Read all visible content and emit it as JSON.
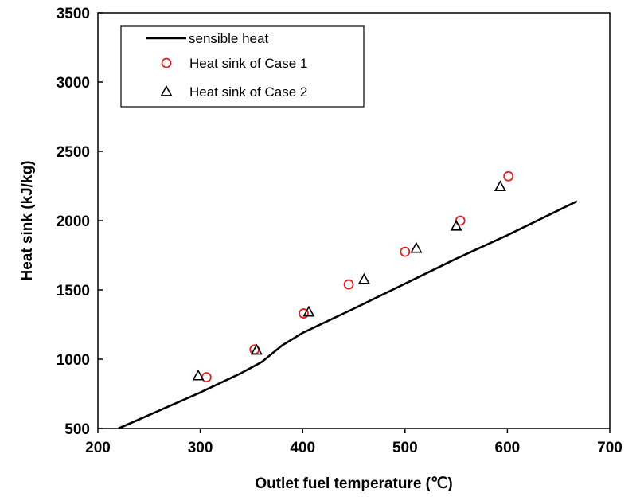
{
  "chart_data": {
    "type": "line",
    "xlabel": "Outlet fuel temperature (℃)",
    "ylabel": "Heat sink (kJ/kg)",
    "xlim": [
      200,
      700
    ],
    "ylim": [
      500,
      3500
    ],
    "xticks": [
      200,
      300,
      400,
      500,
      600,
      700
    ],
    "yticks": [
      500,
      1000,
      1500,
      2000,
      2500,
      3000,
      3500
    ],
    "grid": false,
    "legend_position": "top-left",
    "series": [
      {
        "name": "sensible heat",
        "kind": "line",
        "color": "#000000",
        "x": [
          220,
          260,
          300,
          340,
          360,
          380,
          400,
          450,
          500,
          550,
          600,
          668
        ],
        "y": [
          500,
          630,
          760,
          900,
          980,
          1100,
          1190,
          1365,
          1545,
          1725,
          1895,
          2140
        ]
      },
      {
        "name": "Heat sink of Case 1",
        "kind": "scatter",
        "marker": "circle",
        "color": "#e02020",
        "x": [
          306,
          353,
          401,
          445,
          500,
          554,
          601
        ],
        "y": [
          870,
          1070,
          1330,
          1540,
          1775,
          2000,
          2320
        ]
      },
      {
        "name": "Heat sink of Case 2",
        "kind": "scatter",
        "marker": "triangle",
        "color": "#000000",
        "x": [
          298,
          355,
          406,
          460,
          511,
          550,
          593
        ],
        "y": [
          880,
          1065,
          1340,
          1575,
          1800,
          1960,
          2245
        ]
      }
    ]
  }
}
